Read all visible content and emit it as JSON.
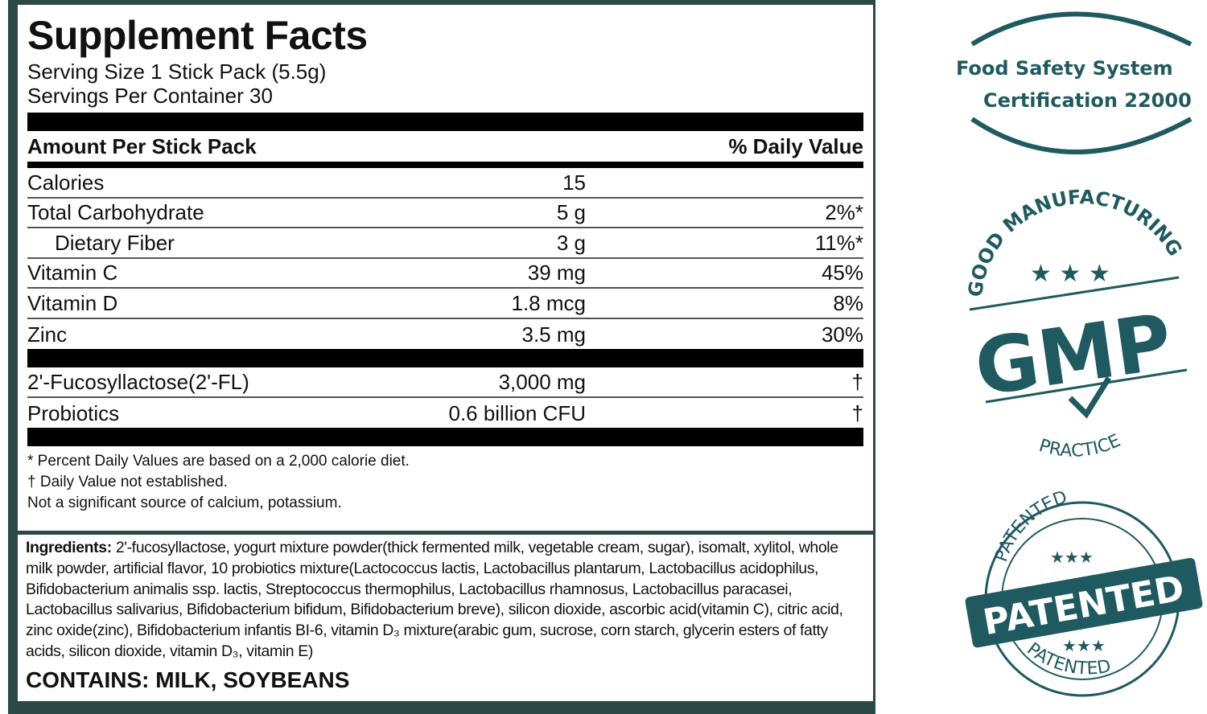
{
  "label": {
    "title": "Supplement Facts",
    "serving_size": "Serving Size 1 Stick Pack (5.5g)",
    "servings_per_container": "Servings Per Container 30",
    "header_left": "Amount Per Stick Pack",
    "header_right": "% Daily Value",
    "nutrients": [
      {
        "name": "Calories",
        "amount": "15",
        "dv": ""
      },
      {
        "name": "Total Carbohydrate",
        "amount": "5 g",
        "dv": "2%*"
      },
      {
        "name": "Dietary Fiber",
        "amount": "3 g",
        "dv": "11%*"
      },
      {
        "name": "Vitamin C",
        "amount": "39 mg",
        "dv": "45%"
      },
      {
        "name": "Vitamin D",
        "amount": "1.8 mcg",
        "dv": "8%"
      },
      {
        "name": "Zinc",
        "amount": "3.5 mg",
        "dv": "30%"
      }
    ],
    "others": [
      {
        "name": "2'-Fucosyllactose(2'-FL)",
        "amount": "3,000 mg",
        "dv": "†"
      },
      {
        "name": "Probiotics",
        "amount": "0.6 billion CFU",
        "dv": "†"
      }
    ],
    "footnotes": [
      "* Percent Daily Values are based on a 2,000 calorie diet.",
      "† Daily Value not established.",
      "Not a significant source of calcium, potassium."
    ]
  },
  "ingredients": {
    "label": "Ingredients:",
    "text": " 2'-fucosyllactose, yogurt mixture powder(thick fermented milk, vegetable cream, sugar), isomalt, xylitol, whole milk powder, artificial flavor, 10 probiotics mixture(Lactococcus lactis, Lactobacillus plantarum, Lactobacillus acidophilus, Bifidobacterium animalis ssp. lactis, Streptococcus thermophilus, Lactobacillus rhamnosus, Lactobacillus paracasei, Lactobacillus salivarius, Bifidobacterium bifidum, Bifidobacterium breve), silicon dioxide, ascorbic acid(vitamin C), citric acid, zinc oxide(zinc), Bifidobacterium infantis BI-6, vitamin D₃ mixture(arabic gum, sucrose, corn starch, glycerin esters of fatty acids, silicon dioxide, vitamin D₃, vitamin E)",
    "contains": "CONTAINS: MILK, SOYBEANS"
  },
  "badges": {
    "color": "#1f5a60",
    "fssc_line1": "Food Safety System",
    "fssc_line2": "Certification 22000",
    "gmp_top": "GOOD MANUFACTURING",
    "gmp_main": "GMP",
    "gmp_bottom": "PRACTICE",
    "patented_top": "PATENTED",
    "patented_main": "PATENTED",
    "patented_bottom": "PATENTED"
  }
}
